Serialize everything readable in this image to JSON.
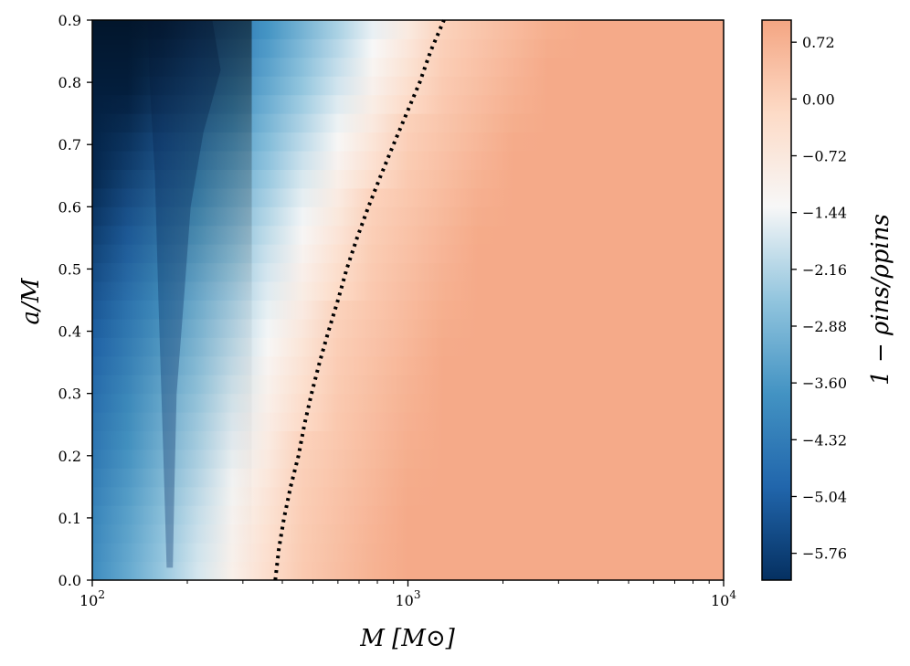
{
  "chart_data": {
    "type": "heatmap",
    "title": "",
    "xlabel": "M [M⊙]",
    "ylabel": "a/M",
    "colorbar_label": "1 − ρins/ρpins",
    "x_scale": "log",
    "xlim": [
      100,
      10000
    ],
    "ylim": [
      0.0,
      0.9
    ],
    "x_ticks": [
      {
        "value": 100,
        "base": "10",
        "exp": "2"
      },
      {
        "value": 1000,
        "base": "10",
        "exp": "3"
      },
      {
        "value": 10000,
        "base": "10",
        "exp": "4"
      }
    ],
    "y_ticks": [
      {
        "value": 0.0,
        "label": "0.0"
      },
      {
        "value": 0.1,
        "label": "0.1"
      },
      {
        "value": 0.2,
        "label": "0.2"
      },
      {
        "value": 0.3,
        "label": "0.3"
      },
      {
        "value": 0.4,
        "label": "0.4"
      },
      {
        "value": 0.5,
        "label": "0.5"
      },
      {
        "value": 0.6,
        "label": "0.6"
      },
      {
        "value": 0.7,
        "label": "0.7"
      },
      {
        "value": 0.8,
        "label": "0.8"
      },
      {
        "value": 0.9,
        "label": "0.9"
      }
    ],
    "colorbar": {
      "colormap": "RdBu_r",
      "range": [
        -6.1,
        1.0
      ],
      "ticks": [
        {
          "value": 0.72,
          "label": "0.72"
        },
        {
          "value": 0.0,
          "label": "0.00"
        },
        {
          "value": -0.72,
          "label": "−0.72"
        },
        {
          "value": -1.44,
          "label": "−1.44"
        },
        {
          "value": -2.16,
          "label": "−2.16"
        },
        {
          "value": -2.88,
          "label": "−2.88"
        },
        {
          "value": -3.6,
          "label": "−3.60"
        },
        {
          "value": -4.32,
          "label": "−4.32"
        },
        {
          "value": -5.04,
          "label": "−5.04"
        },
        {
          "value": -5.76,
          "label": "−5.76"
        }
      ],
      "stops": [
        "#053061",
        "#2166ac",
        "#4393c3",
        "#92c5de",
        "#f7f7f7",
        "#fddbc7",
        "#f4a582"
      ]
    },
    "zero_contour": {
      "style": "dotted",
      "color": "#000000",
      "points": [
        {
          "M": 380,
          "a": 0.0
        },
        {
          "M": 390,
          "a": 0.05
        },
        {
          "M": 405,
          "a": 0.1
        },
        {
          "M": 425,
          "a": 0.15
        },
        {
          "M": 450,
          "a": 0.2
        },
        {
          "M": 470,
          "a": 0.25
        },
        {
          "M": 495,
          "a": 0.3
        },
        {
          "M": 525,
          "a": 0.35
        },
        {
          "M": 560,
          "a": 0.4
        },
        {
          "M": 600,
          "a": 0.45
        },
        {
          "M": 640,
          "a": 0.5
        },
        {
          "M": 690,
          "a": 0.55
        },
        {
          "M": 750,
          "a": 0.6
        },
        {
          "M": 820,
          "a": 0.65
        },
        {
          "M": 900,
          "a": 0.7
        },
        {
          "M": 990,
          "a": 0.75
        },
        {
          "M": 1090,
          "a": 0.8
        },
        {
          "M": 1180,
          "a": 0.85
        },
        {
          "M": 1300,
          "a": 0.9
        }
      ]
    }
  }
}
